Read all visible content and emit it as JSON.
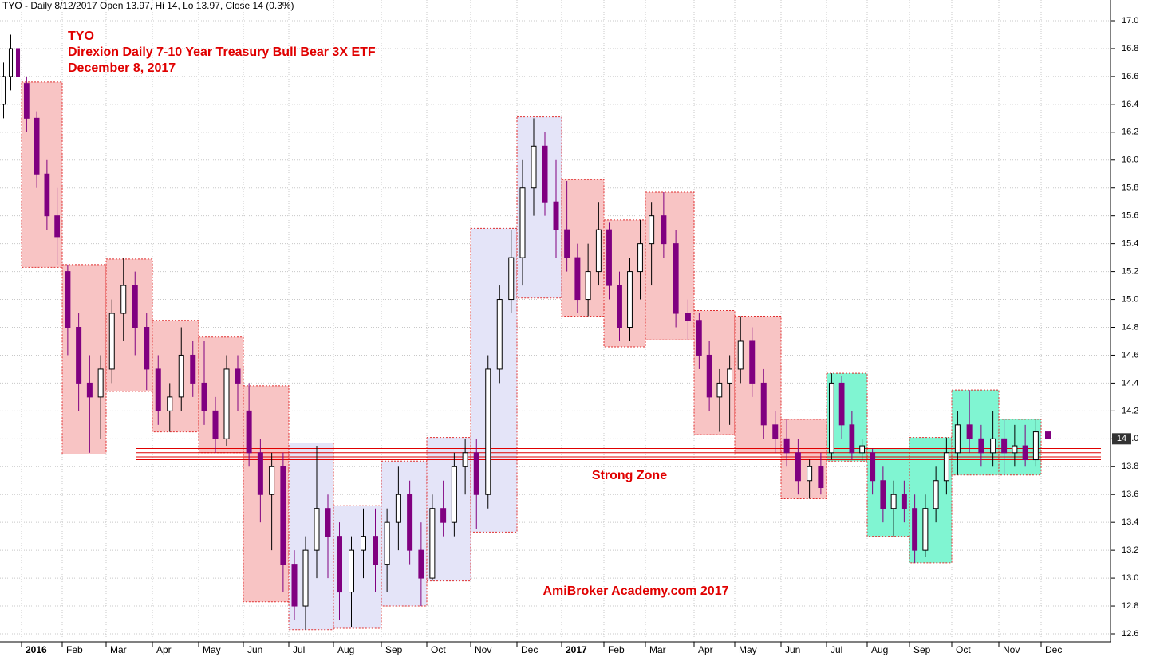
{
  "chart_data": {
    "type": "candlestick",
    "header": "TYO - Daily 8/12/2017 Open 13.97, Hi 14, Lo 13.97, Close 14 (0.3%)",
    "title": [
      "TYO",
      "Direxion Daily 7-10 Year Treasury Bull Bear 3X ETF",
      "December 8, 2017"
    ],
    "annotations": [
      "Strong Zone",
      "AmiBroker Academy.com  2017"
    ],
    "last_price": 14,
    "up_color": "#ffffff",
    "down_color": "#800080",
    "grid": true,
    "ylim": [
      12.55,
      17.05
    ],
    "yticks": [
      12.6,
      12.8,
      {
        "value": 13,
        "label": "13.0"
      },
      13.2,
      13.4,
      13.6,
      13.8,
      {
        "value": 14,
        "label": "14.0"
      },
      14.2,
      14.4,
      14.6,
      14.8,
      {
        "value": 15,
        "label": "15.0"
      },
      15.2,
      15.4,
      15.6,
      15.8,
      {
        "value": 16,
        "label": "16.0"
      },
      16.2,
      16.4,
      16.6,
      16.8,
      {
        "value": 17,
        "label": "17.0"
      }
    ],
    "zone_color": "#e00000",
    "zone_lines": [
      13.93,
      13.9,
      13.87,
      13.85
    ],
    "categories": [
      null,
      "2016",
      "Feb",
      "Mar",
      "Apr",
      "May",
      "Jun",
      "Jul",
      "Aug",
      "Sep",
      "Oct",
      "Nov",
      "Dec",
      "2017",
      "Feb",
      "Mar",
      "Apr",
      "May",
      "Jun",
      "Jul",
      "Aug",
      "Sep",
      "Oct",
      "Nov",
      "Dec"
    ],
    "months": [
      {
        "box": null,
        "box_color": null,
        "candles": [
          [
            16.4,
            16.7,
            16.3,
            16.6
          ],
          [
            16.6,
            16.9,
            16.5,
            16.8
          ],
          [
            16.8,
            16.9,
            16.5,
            16.6
          ]
        ]
      },
      {
        "box": [
          15.23,
          16.56
        ],
        "box_color": "#f8c4c4",
        "candles": [
          [
            16.55,
            16.6,
            16.2,
            16.3
          ],
          [
            16.3,
            16.35,
            15.8,
            15.9
          ],
          [
            15.9,
            16.0,
            15.5,
            15.6
          ],
          [
            15.6,
            15.8,
            15.25,
            15.45
          ]
        ]
      },
      {
        "box": [
          13.89,
          15.25
        ],
        "box_color": "#f8c4c4",
        "candles": [
          [
            15.2,
            15.25,
            14.6,
            14.8
          ],
          [
            14.8,
            14.9,
            14.2,
            14.4
          ],
          [
            14.4,
            14.6,
            13.9,
            14.3
          ],
          [
            14.3,
            14.6,
            14.0,
            14.5
          ]
        ]
      },
      {
        "box": [
          14.34,
          15.29
        ],
        "box_color": "#f8c4c4",
        "candles": [
          [
            14.5,
            15.0,
            14.4,
            14.9
          ],
          [
            14.9,
            15.3,
            14.7,
            15.1
          ],
          [
            15.1,
            15.2,
            14.6,
            14.8
          ],
          [
            14.8,
            14.9,
            14.35,
            14.5
          ]
        ]
      },
      {
        "box": [
          14.05,
          14.85
        ],
        "box_color": "#f8c4c4",
        "candles": [
          [
            14.5,
            14.6,
            14.1,
            14.2
          ],
          [
            14.2,
            14.4,
            14.05,
            14.3
          ],
          [
            14.3,
            14.8,
            14.2,
            14.6
          ],
          [
            14.6,
            14.7,
            14.3,
            14.4
          ]
        ]
      },
      {
        "box": [
          13.9,
          14.73
        ],
        "box_color": "#f8c4c4",
        "candles": [
          [
            14.4,
            14.7,
            14.1,
            14.2
          ],
          [
            14.2,
            14.3,
            13.9,
            14.0
          ],
          [
            14.0,
            14.6,
            13.95,
            14.5
          ],
          [
            14.5,
            14.6,
            14.2,
            14.4
          ]
        ]
      },
      {
        "box": [
          12.83,
          14.38
        ],
        "box_color": "#f8c4c4",
        "candles": [
          [
            14.2,
            14.4,
            13.8,
            13.9
          ],
          [
            13.9,
            14.0,
            13.4,
            13.6
          ],
          [
            13.6,
            13.9,
            13.2,
            13.8
          ],
          [
            13.8,
            13.9,
            12.9,
            13.1
          ]
        ]
      },
      {
        "box": [
          12.63,
          13.97
        ],
        "box_color": "#e4e4f8",
        "candles": [
          [
            13.1,
            13.2,
            12.7,
            12.8
          ],
          [
            12.8,
            13.3,
            12.63,
            13.2
          ],
          [
            13.2,
            13.95,
            13.0,
            13.5
          ],
          [
            13.5,
            13.6,
            13.0,
            13.3
          ]
        ]
      },
      {
        "box": [
          12.64,
          13.52
        ],
        "box_color": "#e4e4f8",
        "candles": [
          [
            13.3,
            13.4,
            12.7,
            12.9
          ],
          [
            12.9,
            13.3,
            12.65,
            13.2
          ],
          [
            13.2,
            13.5,
            13.0,
            13.3
          ],
          [
            13.3,
            13.5,
            12.9,
            13.1
          ]
        ]
      },
      {
        "box": [
          12.8,
          13.84
        ],
        "box_color": "#e4e4f8",
        "candles": [
          [
            13.1,
            13.5,
            12.9,
            13.4
          ],
          [
            13.4,
            13.8,
            13.2,
            13.6
          ],
          [
            13.6,
            13.7,
            13.1,
            13.2
          ],
          [
            13.2,
            13.4,
            12.8,
            13.0
          ]
        ]
      },
      {
        "box": [
          12.98,
          14.01
        ],
        "box_color": "#e4e4f8",
        "candles": [
          [
            13.0,
            13.6,
            12.98,
            13.5
          ],
          [
            13.5,
            13.7,
            13.3,
            13.4
          ],
          [
            13.4,
            13.9,
            13.3,
            13.8
          ],
          [
            13.8,
            14.0,
            13.6,
            13.9
          ]
        ]
      },
      {
        "box": [
          13.33,
          15.51
        ],
        "box_color": "#e4e4f8",
        "candles": [
          [
            13.9,
            14.0,
            13.35,
            13.6
          ],
          [
            13.6,
            14.6,
            13.5,
            14.5
          ],
          [
            14.5,
            15.1,
            14.4,
            15.0
          ],
          [
            15.0,
            15.5,
            14.9,
            15.3
          ]
        ]
      },
      {
        "box": [
          15.01,
          16.31
        ],
        "box_color": "#e4e4f8",
        "candles": [
          [
            15.3,
            16.0,
            15.1,
            15.8
          ],
          [
            15.8,
            16.3,
            15.6,
            16.1
          ],
          [
            16.1,
            16.2,
            15.6,
            15.7
          ],
          [
            15.7,
            16.0,
            15.3,
            15.5
          ]
        ]
      },
      {
        "box": [
          14.88,
          15.86
        ],
        "box_color": "#f8c4c4",
        "candles": [
          [
            15.5,
            15.85,
            15.2,
            15.3
          ],
          [
            15.3,
            15.4,
            14.9,
            15.0
          ],
          [
            15.0,
            15.4,
            14.88,
            15.2
          ],
          [
            15.2,
            15.7,
            15.1,
            15.5
          ]
        ]
      },
      {
        "box": [
          14.66,
          15.57
        ],
        "box_color": "#f8c4c4",
        "candles": [
          [
            15.5,
            15.55,
            15.0,
            15.1
          ],
          [
            15.1,
            15.2,
            14.7,
            14.8
          ],
          [
            14.8,
            15.3,
            14.7,
            15.2
          ],
          [
            15.2,
            15.57,
            15.0,
            15.4
          ]
        ]
      },
      {
        "box": [
          14.71,
          15.77
        ],
        "box_color": "#f8c4c4",
        "candles": [
          [
            15.4,
            15.7,
            15.1,
            15.6
          ],
          [
            15.6,
            15.77,
            15.3,
            15.4
          ],
          [
            15.4,
            15.5,
            14.8,
            14.9
          ],
          [
            14.9,
            15.0,
            14.71,
            14.85
          ]
        ]
      },
      {
        "box": [
          14.03,
          14.92
        ],
        "box_color": "#f8c4c4",
        "candles": [
          [
            14.85,
            14.9,
            14.5,
            14.6
          ],
          [
            14.6,
            14.7,
            14.2,
            14.3
          ],
          [
            14.3,
            14.5,
            14.05,
            14.4
          ],
          [
            14.4,
            14.6,
            14.1,
            14.5
          ]
        ]
      },
      {
        "box": [
          13.89,
          14.88
        ],
        "box_color": "#f8c4c4",
        "candles": [
          [
            14.5,
            14.88,
            14.4,
            14.7
          ],
          [
            14.7,
            14.8,
            14.3,
            14.4
          ],
          [
            14.4,
            14.5,
            14.0,
            14.1
          ],
          [
            14.1,
            14.2,
            13.9,
            14.0
          ]
        ]
      },
      {
        "box": [
          13.57,
          14.14
        ],
        "box_color": "#f8c4c4",
        "candles": [
          [
            14.0,
            14.14,
            13.8,
            13.9
          ],
          [
            13.9,
            14.0,
            13.6,
            13.7
          ],
          [
            13.7,
            13.85,
            13.57,
            13.8
          ],
          [
            13.8,
            13.9,
            13.6,
            13.65
          ]
        ]
      },
      {
        "box": [
          13.84,
          14.47
        ],
        "box_color": "#80f5d2",
        "candles": [
          [
            13.9,
            14.47,
            13.85,
            14.4
          ],
          [
            14.4,
            14.45,
            14.0,
            14.1
          ],
          [
            14.1,
            14.2,
            13.85,
            13.9
          ],
          [
            13.9,
            14.0,
            13.84,
            13.95
          ]
        ]
      },
      {
        "box": [
          13.3,
          13.93
        ],
        "box_color": "#80f5d2",
        "candles": [
          [
            13.9,
            13.93,
            13.6,
            13.7
          ],
          [
            13.7,
            13.8,
            13.4,
            13.5
          ],
          [
            13.5,
            13.7,
            13.3,
            13.6
          ],
          [
            13.6,
            13.7,
            13.4,
            13.5
          ]
        ]
      },
      {
        "box": [
          13.11,
          14.01
        ],
        "box_color": "#80f5d2",
        "candles": [
          [
            13.5,
            13.6,
            13.11,
            13.2
          ],
          [
            13.2,
            13.6,
            13.15,
            13.5
          ],
          [
            13.5,
            13.8,
            13.4,
            13.7
          ],
          [
            13.7,
            14.01,
            13.6,
            13.9
          ]
        ]
      },
      {
        "box": [
          13.74,
          14.35
        ],
        "box_color": "#80f5d2",
        "candles": [
          [
            13.9,
            14.2,
            13.74,
            14.1
          ],
          [
            14.1,
            14.35,
            13.9,
            14.0
          ],
          [
            14.0,
            14.1,
            13.8,
            13.9
          ],
          [
            13.9,
            14.2,
            13.8,
            14.0
          ]
        ]
      },
      {
        "box": [
          13.74,
          14.14
        ],
        "box_color": "#80f5d2",
        "candles": [
          [
            14.0,
            14.14,
            13.74,
            13.9
          ],
          [
            13.9,
            14.1,
            13.8,
            13.95
          ],
          [
            13.95,
            14.1,
            13.8,
            13.85
          ],
          [
            13.85,
            14.14,
            13.8,
            14.05
          ]
        ]
      },
      {
        "box": null,
        "box_color": null,
        "candles": [
          [
            14.05,
            14.1,
            13.85,
            14.0
          ]
        ]
      }
    ]
  }
}
